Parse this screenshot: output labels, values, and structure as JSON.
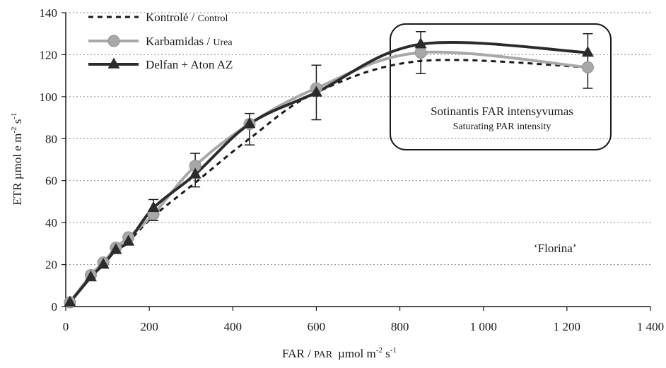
{
  "chart_data": {
    "type": "line",
    "xlabel_main": "FAR / ",
    "xlabel_small": "PAR",
    "xlabel_unit": "µmol m",
    "xlabel_exp1": "-2",
    "xlabel_mid": " s",
    "xlabel_exp2": "-1",
    "ylabel_main": "ETR µmol e m",
    "ylabel_exp1": "-2",
    "ylabel_mid": " s",
    "ylabel_exp2": "-1",
    "xlim": [
      0,
      1400
    ],
    "ylim": [
      0,
      140
    ],
    "xticks": [
      0,
      200,
      400,
      600,
      800,
      1000,
      1200,
      1400
    ],
    "xtick_labels": [
      "0",
      "200",
      "400",
      "600",
      "800",
      "1 000",
      "1 200",
      "1 400"
    ],
    "yticks": [
      0,
      20,
      40,
      60,
      80,
      100,
      120,
      140
    ],
    "ytick_labels": [
      "0",
      "20",
      "40",
      "60",
      "80",
      "100",
      "120",
      "140"
    ],
    "grid": "horizontal",
    "legend_position": "top-left",
    "series": [
      {
        "name": "Kontrolė / ",
        "name_small": "Control",
        "style": "dashed",
        "color": "#1a1a1a",
        "marker": "none",
        "x": [
          10,
          60,
          90,
          120,
          150,
          210,
          310,
          440,
          600,
          850,
          1250
        ],
        "y": [
          2,
          14,
          20,
          27,
          31,
          43,
          59,
          80,
          102,
          117,
          114
        ]
      },
      {
        "name": "Karbamidas / ",
        "name_small": "Urea",
        "style": "solid",
        "color": "#a8a8a8",
        "marker": "circle",
        "x": [
          10,
          60,
          90,
          120,
          150,
          210,
          310,
          440,
          600,
          850,
          1250
        ],
        "y": [
          2,
          15,
          21,
          28,
          33,
          44,
          67,
          87,
          104,
          121,
          114
        ]
      },
      {
        "name": "Delfan + Aton AZ",
        "name_small": "",
        "style": "solid",
        "color": "#2b2b2b",
        "marker": "triangle",
        "x": [
          10,
          60,
          90,
          120,
          150,
          210,
          310,
          440,
          600,
          850,
          1250
        ],
        "y": [
          2,
          14,
          20,
          27,
          31,
          47,
          63,
          87,
          102,
          125,
          121
        ]
      }
    ],
    "error_bars": [
      {
        "x": 210,
        "low": 41,
        "high": 51
      },
      {
        "x": 310,
        "low": 57,
        "high": 73
      },
      {
        "x": 440,
        "low": 77,
        "high": 92
      },
      {
        "x": 600,
        "low": 89,
        "high": 115
      },
      {
        "x": 850,
        "low": 111,
        "high": 131
      },
      {
        "x": 1250,
        "low": 104,
        "high": 130
      }
    ],
    "annotation": {
      "line1": "Sotinantis FAR intensyvumas",
      "line2": "Saturating PAR intensity"
    },
    "cultivar_label": "‘Florina’"
  }
}
